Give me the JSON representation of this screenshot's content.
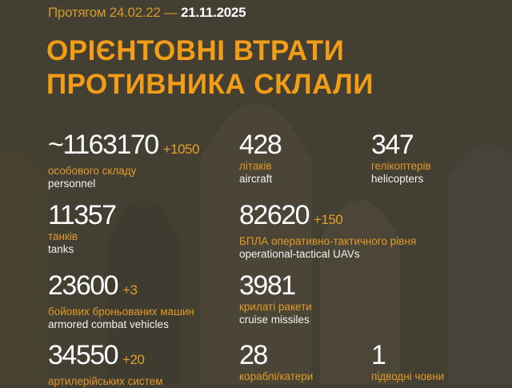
{
  "header": {
    "period_prefix": "Протягом 24.02.22 —",
    "period_end": "21.11.2025",
    "title_line1": "ОРІЄНТОВНІ ВТРАТИ",
    "title_line2": "ПРОТИВНИКА СКЛАЛИ"
  },
  "colors": {
    "background": "#433f33",
    "accent": "#f29d16",
    "text": "#ffffff"
  },
  "stats": [
    {
      "value": "~1163170",
      "delta": "+1050",
      "ua": "особового складу",
      "en": "personnel"
    },
    {
      "value": "428",
      "delta": "",
      "ua": "літаків",
      "en": "aircraft"
    },
    {
      "value": "347",
      "delta": "",
      "ua": "гелікоптерів",
      "en": "helicopters"
    },
    {
      "value": "11357",
      "delta": "",
      "ua": "танків",
      "en": "tanks"
    },
    {
      "value": "82620",
      "delta": "+150",
      "ua": "БПЛА оперативно-тактичного рівня",
      "en": "operational-tactical UAVs"
    },
    {
      "value": "23600",
      "delta": "+3",
      "ua": "бойових броньованих машин",
      "en": "armored combat vehicles"
    },
    {
      "value": "3981",
      "delta": "",
      "ua": "крилаті ракети",
      "en": "cruise missiles"
    },
    {
      "value": "34550",
      "delta": "+20",
      "ua": "артилерійських систем",
      "en": ""
    },
    {
      "value": "28",
      "delta": "",
      "ua": "кораблі/катери",
      "en": ""
    },
    {
      "value": "1",
      "delta": "",
      "ua": "підводні човни",
      "en": ""
    }
  ]
}
